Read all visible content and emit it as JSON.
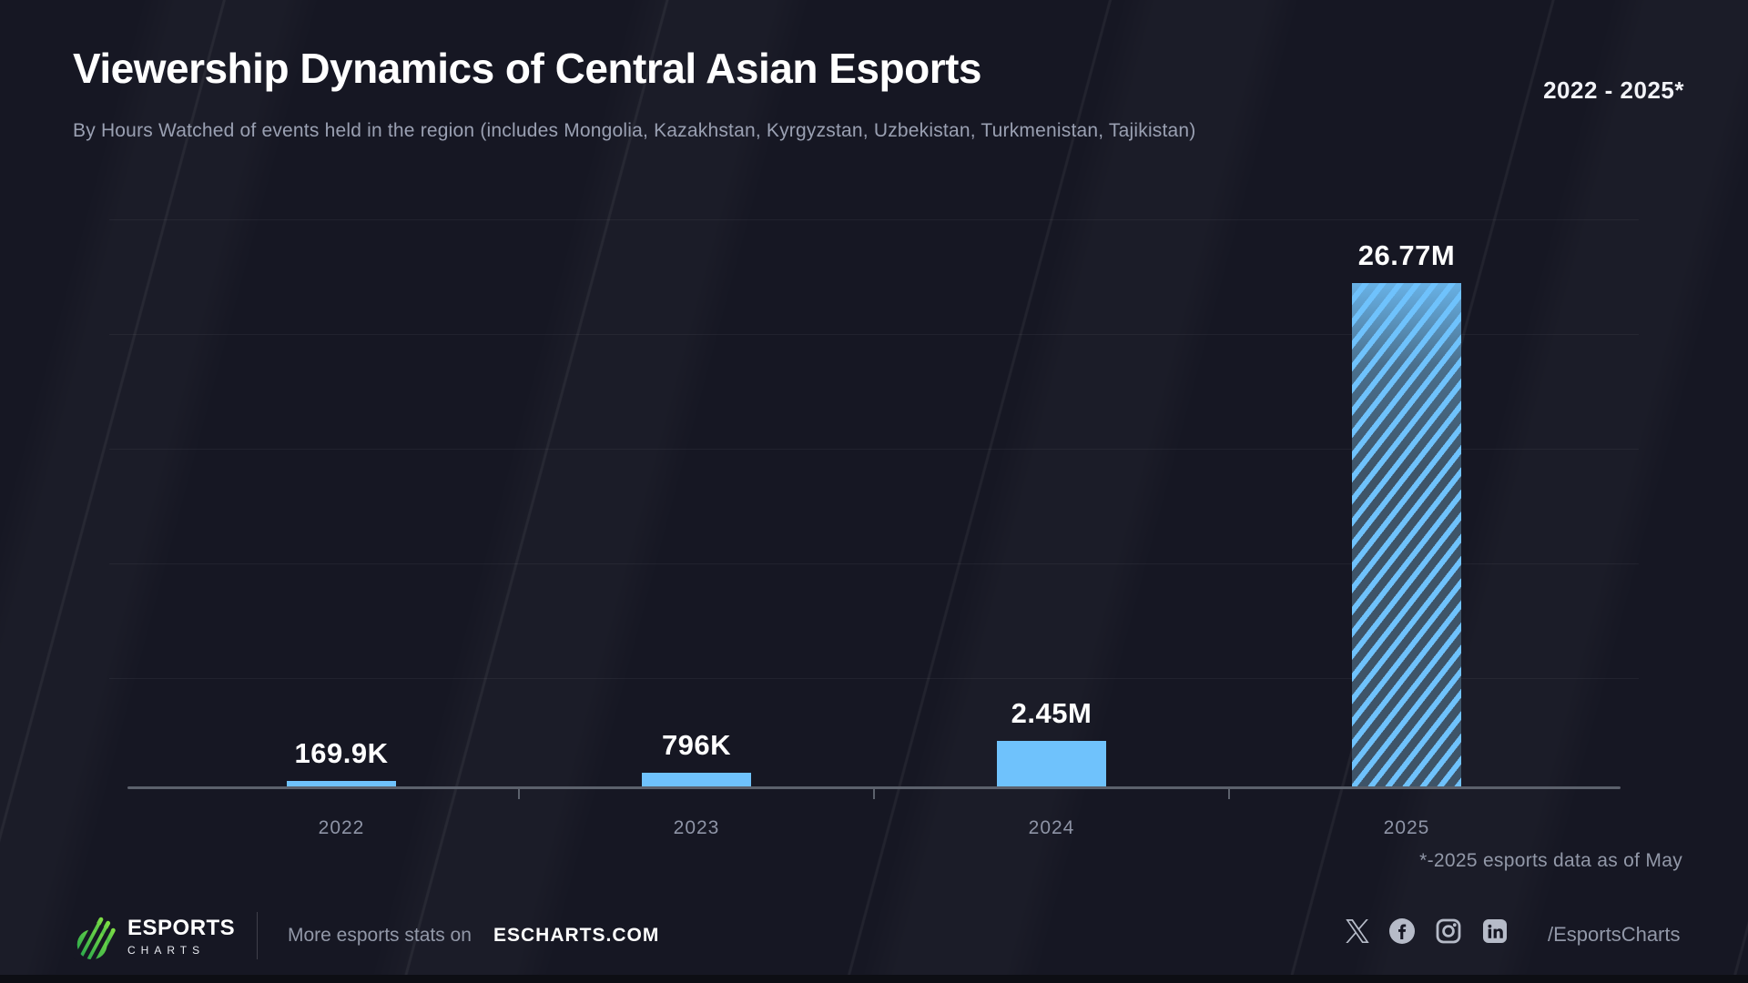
{
  "header": {
    "title": "Viewership Dynamics of Central Asian Esports",
    "subtitle": "By Hours Watched of events held in the region (includes Mongolia, Kazakhstan, Kyrgyzstan, Uzbekistan, Turkmenistan, Tajikistan)",
    "range_label": "2022 - 2025*"
  },
  "chart_data": {
    "type": "bar",
    "title": "Viewership Dynamics of Central Asian Esports",
    "subtitle": "By Hours Watched of events held in the region (includes Mongolia, Kazakhstan, Kyrgyzstan, Uzbekistan, Turkmenistan, Tajikistan)",
    "categories": [
      "2022",
      "2023",
      "2024",
      "2025"
    ],
    "values": [
      169900,
      796000,
      2450000,
      26770000
    ],
    "value_labels": [
      "169.9K",
      "796K",
      "2.45M",
      "26.77M"
    ],
    "xlabel": "",
    "ylabel": "",
    "ylim": [
      0,
      26770000
    ],
    "grid": "faint horizontal gridlines",
    "legend": "none",
    "bar_color": "#6fc2fc",
    "last_bar_style": "diagonal-stripes",
    "footnote": "*-2025 esports data as of May"
  },
  "footer": {
    "brand_top": "ESPORTS",
    "brand_bottom": "CHARTS",
    "more_stats": "More esports stats on",
    "site": "ESCHARTS.COM",
    "handle": "/EsportsCharts",
    "social_icons": [
      "x",
      "facebook",
      "instagram",
      "linkedin"
    ]
  },
  "colors": {
    "background": "#161723",
    "bar_blue": "#6fc2fc",
    "stripe_dark": "#3e5468",
    "axis_gray": "#5c616c",
    "muted_text": "#9298a8",
    "logo_green_dark": "#1fa24c",
    "logo_green_light": "#7ddd45"
  }
}
